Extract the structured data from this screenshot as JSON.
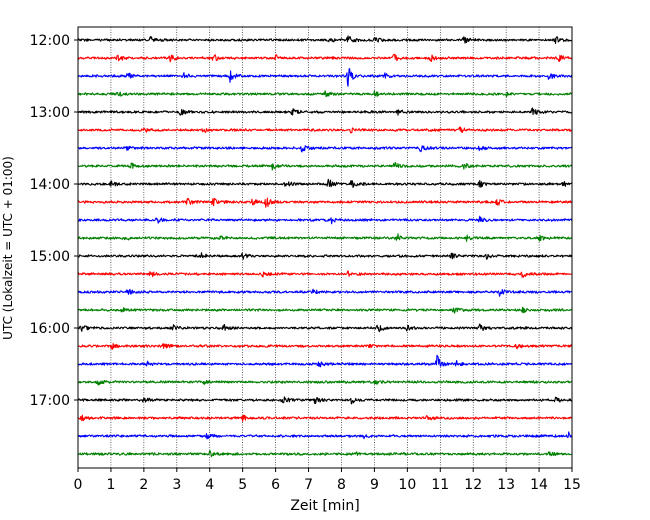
{
  "chart_data": {
    "type": "line",
    "title": "",
    "xlabel": "Zeit  [min]",
    "ylabel": "UTC (Lokalzeit = UTC + 01:00)",
    "xlim": [
      0,
      15
    ],
    "x_ticks": [
      "0",
      "1",
      "2",
      "3",
      "4",
      "5",
      "6",
      "7",
      "8",
      "9",
      "10",
      "11",
      "12",
      "13",
      "14",
      "15"
    ],
    "y_ticks": [
      "12:00",
      "13:00",
      "14:00",
      "15:00",
      "16:00",
      "17:00"
    ],
    "grid": "vertical dotted lines at each minute",
    "trace_interval_minutes": 15,
    "start_time": "12:00",
    "colors": [
      "#000000",
      "#ff0000",
      "#0000ff",
      "#008000"
    ],
    "traces": [
      {
        "time": "12:00",
        "color": "#000000",
        "events": [
          {
            "x": 2.2,
            "amp": 0.25
          },
          {
            "x": 7.6,
            "amp": 0.3
          },
          {
            "x": 8.2,
            "amp": 0.35
          },
          {
            "x": 9.0,
            "amp": 0.2
          },
          {
            "x": 11.7,
            "amp": 0.3
          },
          {
            "x": 14.5,
            "amp": 0.35
          }
        ]
      },
      {
        "time": "12:15",
        "color": "#ff0000",
        "events": [
          {
            "x": 1.2,
            "amp": 0.3
          },
          {
            "x": 2.8,
            "amp": 0.3
          },
          {
            "x": 4.1,
            "amp": 0.35
          },
          {
            "x": 6.0,
            "amp": 0.25
          },
          {
            "x": 9.6,
            "amp": 0.4
          },
          {
            "x": 10.7,
            "amp": 0.3
          },
          {
            "x": 14.6,
            "amp": 0.25
          }
        ]
      },
      {
        "time": "12:30",
        "color": "#0000ff",
        "events": [
          {
            "x": 1.5,
            "amp": 0.25
          },
          {
            "x": 3.2,
            "amp": 0.25
          },
          {
            "x": 4.6,
            "amp": 0.6
          },
          {
            "x": 8.2,
            "amp": 1.0
          },
          {
            "x": 9.3,
            "amp": 0.25
          },
          {
            "x": 14.3,
            "amp": 0.3
          }
        ]
      },
      {
        "time": "12:45",
        "color": "#008000",
        "events": [
          {
            "x": 1.2,
            "amp": 0.2
          },
          {
            "x": 7.5,
            "amp": 0.3
          },
          {
            "x": 9.0,
            "amp": 0.2
          },
          {
            "x": 13.0,
            "amp": 0.2
          }
        ]
      },
      {
        "time": "13:00",
        "color": "#000000",
        "events": [
          {
            "x": 3.1,
            "amp": 0.25
          },
          {
            "x": 6.5,
            "amp": 0.3
          },
          {
            "x": 9.7,
            "amp": 0.3
          },
          {
            "x": 13.8,
            "amp": 0.35
          }
        ]
      },
      {
        "time": "13:15",
        "color": "#ff0000",
        "events": [
          {
            "x": 2.0,
            "amp": 0.25
          },
          {
            "x": 3.8,
            "amp": 0.25
          },
          {
            "x": 8.3,
            "amp": 0.3
          },
          {
            "x": 11.6,
            "amp": 0.25
          }
        ]
      },
      {
        "time": "13:30",
        "color": "#0000ff",
        "events": [
          {
            "x": 1.4,
            "amp": 0.25
          },
          {
            "x": 6.8,
            "amp": 0.4
          },
          {
            "x": 10.4,
            "amp": 0.3
          },
          {
            "x": 12.2,
            "amp": 0.25
          }
        ]
      },
      {
        "time": "13:45",
        "color": "#008000",
        "events": [
          {
            "x": 1.6,
            "amp": 0.3
          },
          {
            "x": 5.9,
            "amp": 0.3
          },
          {
            "x": 9.6,
            "amp": 0.3
          },
          {
            "x": 11.7,
            "amp": 0.25
          }
        ]
      },
      {
        "time": "14:00",
        "color": "#000000",
        "events": [
          {
            "x": 1.0,
            "amp": 0.2
          },
          {
            "x": 6.3,
            "amp": 0.3
          },
          {
            "x": 7.6,
            "amp": 0.4
          },
          {
            "x": 8.3,
            "amp": 0.3
          },
          {
            "x": 12.2,
            "amp": 0.3
          },
          {
            "x": 14.7,
            "amp": 0.35
          }
        ]
      },
      {
        "time": "14:15",
        "color": "#ff0000",
        "events": [
          {
            "x": 3.3,
            "amp": 0.35
          },
          {
            "x": 4.1,
            "amp": 0.35
          },
          {
            "x": 5.3,
            "amp": 0.3
          },
          {
            "x": 5.7,
            "amp": 0.55
          },
          {
            "x": 12.7,
            "amp": 0.35
          }
        ]
      },
      {
        "time": "14:30",
        "color": "#0000ff",
        "events": [
          {
            "x": 2.4,
            "amp": 0.25
          },
          {
            "x": 7.7,
            "amp": 0.35
          },
          {
            "x": 12.2,
            "amp": 0.25
          }
        ]
      },
      {
        "time": "14:45",
        "color": "#008000",
        "events": [
          {
            "x": 1.4,
            "amp": 0.2
          },
          {
            "x": 4.3,
            "amp": 0.25
          },
          {
            "x": 9.7,
            "amp": 0.35
          },
          {
            "x": 11.8,
            "amp": 0.25
          },
          {
            "x": 14.0,
            "amp": 0.25
          }
        ]
      },
      {
        "time": "15:00",
        "color": "#000000",
        "events": [
          {
            "x": 3.7,
            "amp": 0.3
          },
          {
            "x": 5.0,
            "amp": 0.3
          },
          {
            "x": 11.3,
            "amp": 0.3
          },
          {
            "x": 12.4,
            "amp": 0.3
          }
        ]
      },
      {
        "time": "15:15",
        "color": "#ff0000",
        "events": [
          {
            "x": 2.2,
            "amp": 0.25
          },
          {
            "x": 5.6,
            "amp": 0.3
          },
          {
            "x": 8.2,
            "amp": 0.3
          },
          {
            "x": 13.5,
            "amp": 0.3
          }
        ]
      },
      {
        "time": "15:30",
        "color": "#0000ff",
        "events": [
          {
            "x": 1.5,
            "amp": 0.25
          },
          {
            "x": 7.1,
            "amp": 0.25
          },
          {
            "x": 12.8,
            "amp": 0.3
          }
        ]
      },
      {
        "time": "15:45",
        "color": "#008000",
        "events": [
          {
            "x": 1.3,
            "amp": 0.2
          },
          {
            "x": 11.4,
            "amp": 0.25
          },
          {
            "x": 13.5,
            "amp": 0.2
          }
        ]
      },
      {
        "time": "16:00",
        "color": "#000000",
        "events": [
          {
            "x": 0.1,
            "amp": 0.3
          },
          {
            "x": 2.9,
            "amp": 0.25
          },
          {
            "x": 4.4,
            "amp": 0.35
          },
          {
            "x": 9.1,
            "amp": 0.35
          },
          {
            "x": 10.0,
            "amp": 0.3
          },
          {
            "x": 12.2,
            "amp": 0.3
          }
        ]
      },
      {
        "time": "16:15",
        "color": "#ff0000",
        "events": [
          {
            "x": 1.0,
            "amp": 0.35
          },
          {
            "x": 2.6,
            "amp": 0.25
          },
          {
            "x": 8.8,
            "amp": 0.25
          },
          {
            "x": 13.3,
            "amp": 0.25
          }
        ]
      },
      {
        "time": "16:30",
        "color": "#0000ff",
        "events": [
          {
            "x": 2.1,
            "amp": 0.2
          },
          {
            "x": 7.3,
            "amp": 0.25
          },
          {
            "x": 10.9,
            "amp": 0.75
          },
          {
            "x": 11.5,
            "amp": 0.25
          }
        ]
      },
      {
        "time": "16:45",
        "color": "#008000",
        "events": [
          {
            "x": 0.6,
            "amp": 0.25
          },
          {
            "x": 3.8,
            "amp": 0.2
          },
          {
            "x": 9.0,
            "amp": 0.2
          }
        ]
      },
      {
        "time": "17:00",
        "color": "#000000",
        "events": [
          {
            "x": 2.0,
            "amp": 0.3
          },
          {
            "x": 6.2,
            "amp": 0.35
          },
          {
            "x": 7.2,
            "amp": 0.35
          },
          {
            "x": 8.3,
            "amp": 0.3
          },
          {
            "x": 14.5,
            "amp": 0.25
          }
        ]
      },
      {
        "time": "17:15",
        "color": "#ff0000",
        "events": [
          {
            "x": 0.1,
            "amp": 0.25
          },
          {
            "x": 5.0,
            "amp": 0.25
          },
          {
            "x": 10.6,
            "amp": 0.2
          }
        ]
      },
      {
        "time": "17:30",
        "color": "#0000ff",
        "events": [
          {
            "x": 3.9,
            "amp": 0.25
          },
          {
            "x": 8.7,
            "amp": 0.2
          },
          {
            "x": 14.9,
            "amp": 0.3
          }
        ]
      },
      {
        "time": "17:45",
        "color": "#008000",
        "events": [
          {
            "x": 4.0,
            "amp": 0.35
          },
          {
            "x": 8.4,
            "amp": 0.2
          },
          {
            "x": 14.3,
            "amp": 0.2
          }
        ]
      }
    ]
  }
}
